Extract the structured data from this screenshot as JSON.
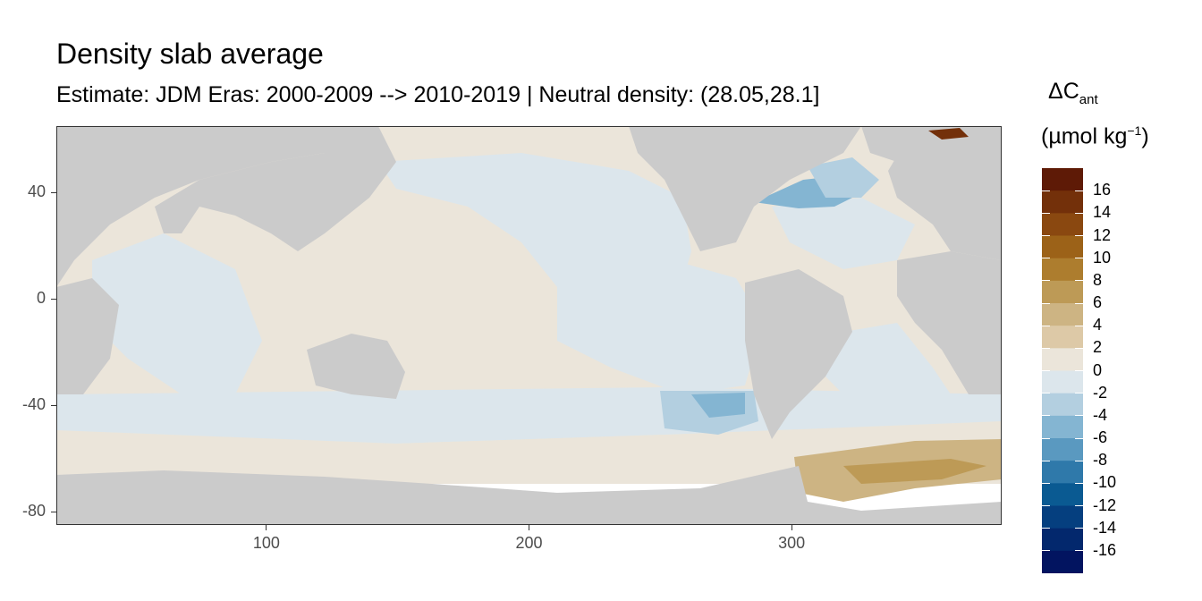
{
  "chart_data": {
    "type": "heatmap",
    "title": "Density slab average",
    "subtitle": "Estimate: JDM Eras: 2000-2009 --> 2010-2019 | Neutral density: (28.05,28.1]",
    "x_ticks": [
      "100",
      "200",
      "300"
    ],
    "x_tick_values": [
      100,
      200,
      300
    ],
    "y_ticks": [
      "40",
      "0",
      "-40",
      "-80"
    ],
    "y_tick_values": [
      40,
      0,
      -40,
      -80
    ],
    "xlim": [
      20,
      380
    ],
    "ylim": [
      -85,
      65
    ],
    "grid": true,
    "legend": {
      "title_main": "ΔC",
      "title_sub": "ant",
      "unit_prefix": "(µmol kg",
      "unit_sup": "−1",
      "unit_suffix": ")",
      "placement": "right",
      "labels": [
        "16",
        "14",
        "12",
        "10",
        "8",
        "6",
        "4",
        "2",
        "0",
        "-2",
        "-4",
        "-6",
        "-8",
        "-10",
        "-12",
        "-14",
        "-16"
      ],
      "colors": [
        "#5e1a06",
        "#73300a",
        "#8a4810",
        "#9c6218",
        "#ad7d2e",
        "#bd9a56",
        "#cdb483",
        "#ddc9a7",
        "#ebe5da",
        "#dce6ec",
        "#b3cfe0",
        "#84b5d2",
        "#5a99c0",
        "#2f79aa",
        "#0a5a92",
        "#053f7f",
        "#03286d",
        "#021460"
      ]
    },
    "regions_description_values": {
      "north_atlantic_subpolar": -4,
      "south_pacific_patch": -4,
      "weddell_sea": 6,
      "southern_band": 2,
      "north_pacific": -2,
      "greenland_edge": 14
    }
  },
  "colors": {
    "land": "#cbcbcb",
    "nodata": "#ffffff",
    "panel_border": "#333333",
    "gridline": "#ebebeb"
  }
}
